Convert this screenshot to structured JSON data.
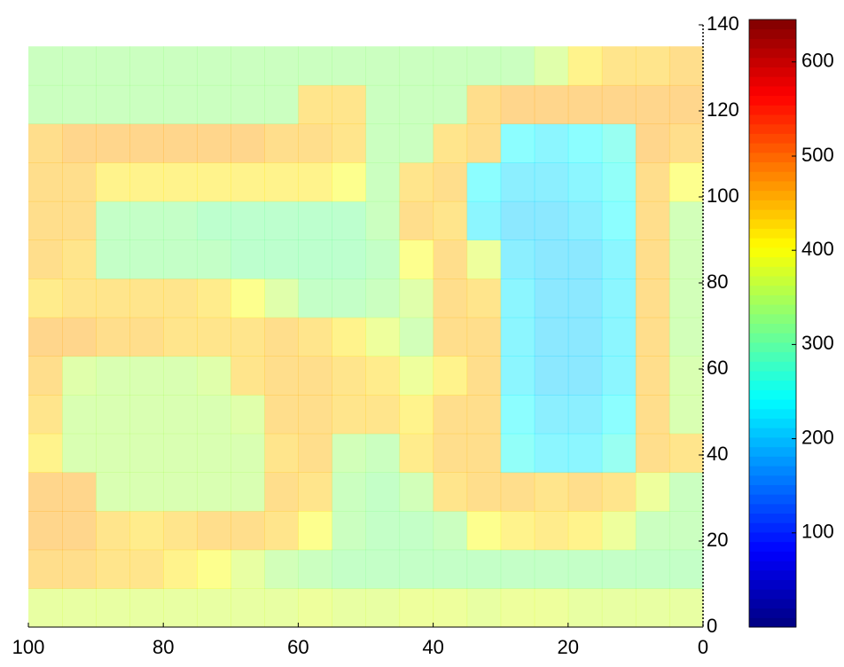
{
  "chart_data": {
    "type": "heatmap",
    "colormap": "jet",
    "xlim": [
      100,
      0
    ],
    "ylim": [
      0,
      140
    ],
    "xticks": [
      100,
      80,
      60,
      40,
      20,
      0
    ],
    "yticks": [
      0,
      20,
      40,
      60,
      80,
      100,
      120,
      140
    ],
    "clim": [
      0,
      645
    ],
    "cticks": [
      100,
      200,
      300,
      400,
      500,
      600
    ],
    "xbins": [
      100,
      95,
      90,
      85,
      80,
      75,
      70,
      65,
      60,
      55,
      50,
      45,
      40,
      35,
      30,
      25,
      20,
      15,
      10,
      5,
      0
    ],
    "ybins": [
      0,
      9,
      18,
      27,
      36,
      45,
      54,
      63,
      72,
      81,
      90,
      99,
      108,
      117,
      126,
      135
    ],
    "z": [
      [
        370,
        370,
        370,
        370,
        370,
        370,
        370,
        370,
        380,
        370,
        370,
        380,
        380,
        370,
        380,
        380,
        370,
        370,
        370,
        370
      ],
      [
        450,
        450,
        440,
        440,
        420,
        400,
        370,
        340,
        330,
        320,
        320,
        320,
        320,
        320,
        320,
        320,
        320,
        320,
        320,
        320
      ],
      [
        460,
        460,
        440,
        430,
        440,
        450,
        450,
        440,
        400,
        330,
        320,
        320,
        330,
        400,
        420,
        430,
        420,
        380,
        330,
        330
      ],
      [
        460,
        460,
        350,
        350,
        350,
        350,
        350,
        450,
        440,
        330,
        320,
        340,
        440,
        450,
        450,
        440,
        450,
        440,
        380,
        330
      ],
      [
        420,
        350,
        350,
        350,
        350,
        350,
        350,
        440,
        450,
        340,
        330,
        430,
        450,
        450,
        250,
        230,
        230,
        260,
        450,
        440
      ],
      [
        440,
        350,
        350,
        350,
        350,
        350,
        360,
        450,
        450,
        440,
        440,
        420,
        450,
        450,
        240,
        220,
        220,
        240,
        450,
        350
      ],
      [
        450,
        360,
        350,
        350,
        350,
        360,
        440,
        450,
        450,
        440,
        430,
        380,
        420,
        450,
        230,
        210,
        210,
        230,
        450,
        350
      ],
      [
        460,
        460,
        450,
        450,
        440,
        440,
        440,
        450,
        440,
        420,
        380,
        340,
        450,
        450,
        230,
        210,
        210,
        230,
        450,
        340
      ],
      [
        430,
        440,
        440,
        440,
        440,
        430,
        400,
        360,
        320,
        320,
        330,
        360,
        450,
        440,
        230,
        210,
        210,
        230,
        450,
        340
      ],
      [
        450,
        440,
        320,
        320,
        320,
        320,
        310,
        310,
        310,
        310,
        320,
        400,
        450,
        380,
        220,
        210,
        210,
        230,
        450,
        340
      ],
      [
        450,
        450,
        320,
        320,
        320,
        310,
        310,
        310,
        310,
        310,
        330,
        450,
        440,
        230,
        210,
        210,
        220,
        240,
        450,
        340
      ],
      [
        450,
        450,
        420,
        420,
        420,
        420,
        420,
        420,
        420,
        400,
        330,
        440,
        450,
        240,
        220,
        220,
        230,
        250,
        450,
        400
      ],
      [
        450,
        460,
        460,
        460,
        460,
        460,
        460,
        450,
        450,
        440,
        330,
        330,
        440,
        450,
        240,
        230,
        240,
        260,
        460,
        450
      ],
      [
        330,
        330,
        330,
        330,
        330,
        330,
        330,
        330,
        440,
        440,
        330,
        330,
        330,
        450,
        460,
        460,
        460,
        460,
        460,
        460
      ],
      [
        330,
        330,
        330,
        330,
        330,
        330,
        330,
        330,
        330,
        330,
        330,
        330,
        330,
        330,
        330,
        360,
        420,
        440,
        440,
        450
      ]
    ]
  }
}
